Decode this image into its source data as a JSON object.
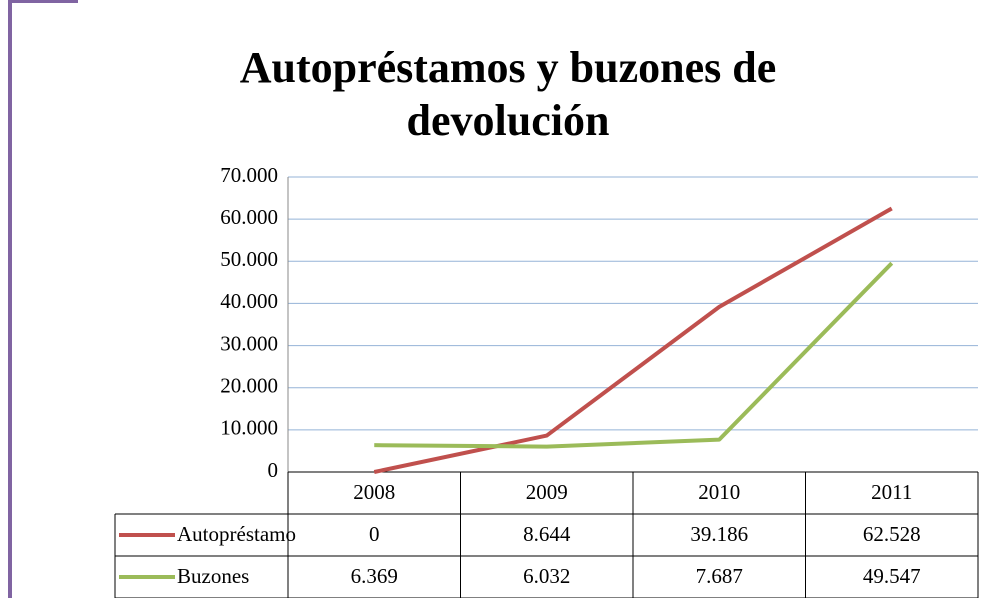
{
  "chart_data": {
    "type": "line",
    "title": "Autopréstamos y buzones de devolución",
    "categories": [
      "2008",
      "2009",
      "2010",
      "2011"
    ],
    "series": [
      {
        "name": "Autopréstamo",
        "color": "#c0504d",
        "values": [
          0,
          8644,
          39186,
          62528
        ],
        "value_labels": [
          "0",
          "8.644",
          "39.186",
          "62.528"
        ]
      },
      {
        "name": "Buzones",
        "color": "#9bbb59",
        "values": [
          6369,
          6032,
          7687,
          49547
        ],
        "value_labels": [
          "6.369",
          "6.032",
          "7.687",
          "49.547"
        ]
      }
    ],
    "ylim": [
      0,
      70000
    ],
    "yticks": [
      0,
      {
        "value": 10000,
        "label": "10.000"
      },
      {
        "value": 20000,
        "label": "20.000"
      },
      {
        "value": 30000,
        "label": "30.000"
      },
      {
        "value": 40000,
        "label": "40.000"
      },
      {
        "value": 50000,
        "label": "50.000"
      },
      {
        "value": 60000,
        "label": "60.000"
      },
      {
        "value": 70000,
        "label": "70.000"
      }
    ],
    "grid": true
  }
}
